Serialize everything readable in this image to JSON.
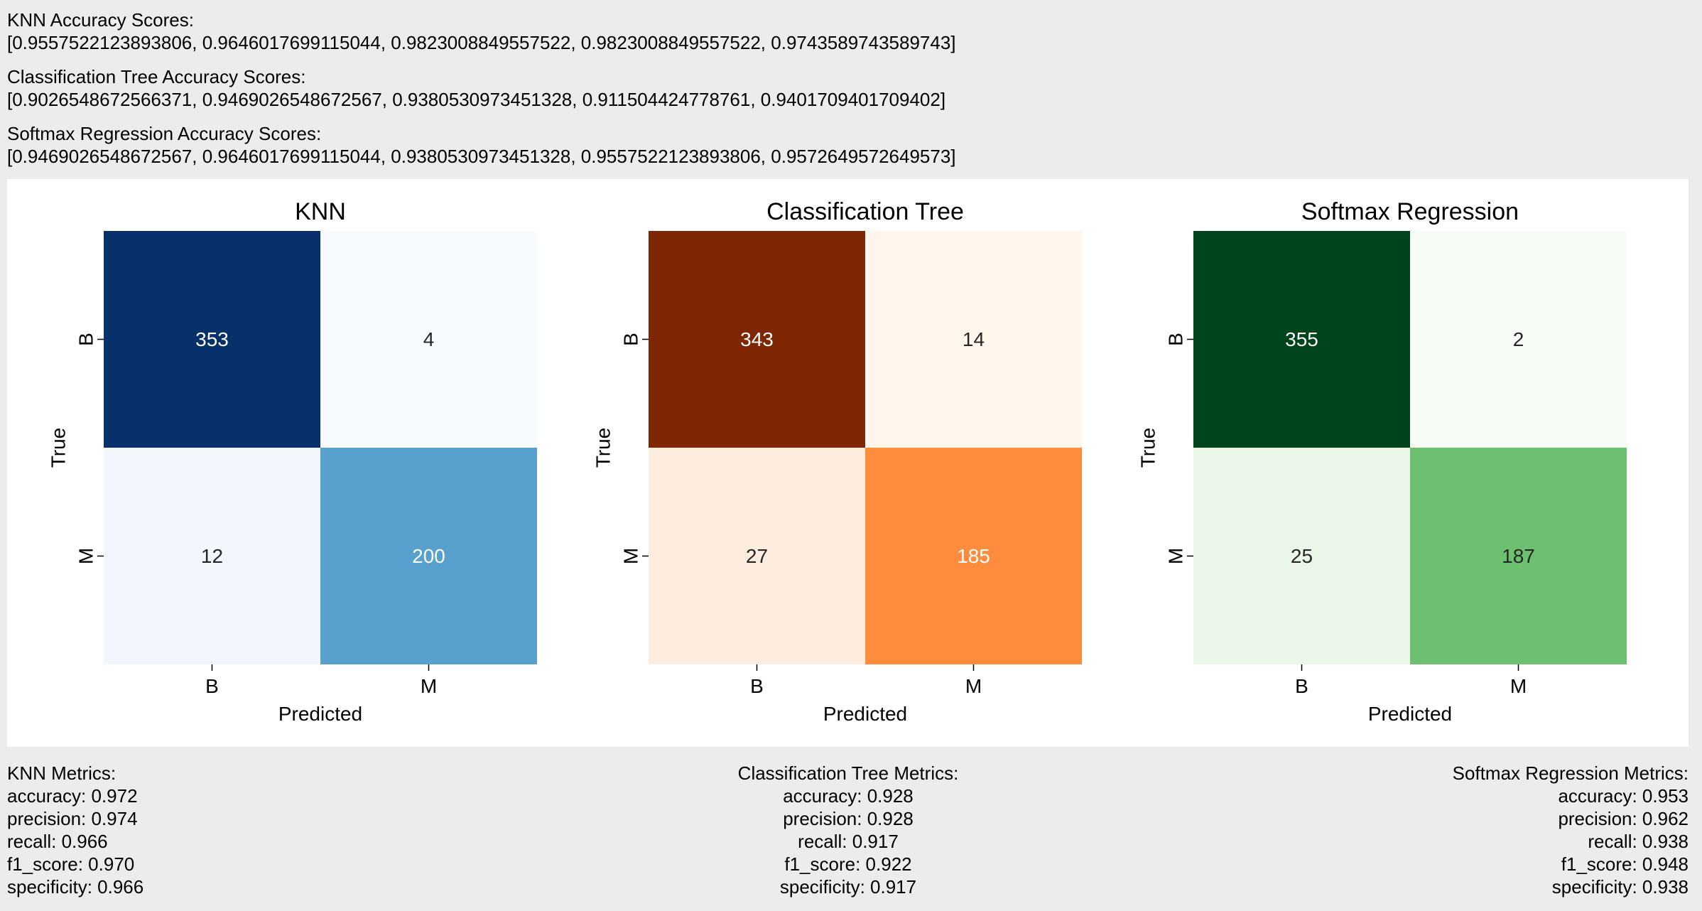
{
  "scores": [
    {
      "heading": "KNN Accuracy Scores:",
      "values": "[0.9557522123893806, 0.9646017699115044, 0.9823008849557522, 0.9823008849557522, 0.9743589743589743]"
    },
    {
      "heading": "Classification Tree Accuracy Scores:",
      "values": "[0.9026548672566371, 0.9469026548672567, 0.9380530973451328, 0.911504424778761, 0.9401709401709402]"
    },
    {
      "heading": "Softmax Regression Accuracy Scores:",
      "values": "[0.9469026548672567, 0.9646017699115044, 0.9380530973451328, 0.9557522123893806, 0.9572649572649573]"
    }
  ],
  "chart_data": [
    {
      "type": "heatmap",
      "title": "KNN",
      "xlabel": "Predicted",
      "ylabel": "True",
      "x_categories": [
        "B",
        "M"
      ],
      "y_categories": [
        "B",
        "M"
      ],
      "matrix": [
        [
          353,
          4
        ],
        [
          12,
          200
        ]
      ],
      "colormap": "Blues",
      "cell_colors": [
        [
          "#08306b",
          "#f7fbff"
        ],
        [
          "#f2f7fd",
          "#58a1cf"
        ]
      ],
      "text_colors": [
        [
          "#ffffff",
          "#262626"
        ],
        [
          "#262626",
          "#ffffff"
        ]
      ],
      "colorbar": false
    },
    {
      "type": "heatmap",
      "title": "Classification Tree",
      "xlabel": "Predicted",
      "ylabel": "True",
      "x_categories": [
        "B",
        "M"
      ],
      "y_categories": [
        "B",
        "M"
      ],
      "matrix": [
        [
          343,
          14
        ],
        [
          27,
          185
        ]
      ],
      "colormap": "Oranges",
      "cell_colors": [
        [
          "#7f2704",
          "#fff5eb"
        ],
        [
          "#feedde",
          "#fd8d3c"
        ]
      ],
      "text_colors": [
        [
          "#ffffff",
          "#262626"
        ],
        [
          "#262626",
          "#ffffff"
        ]
      ],
      "colorbar": false
    },
    {
      "type": "heatmap",
      "title": "Softmax Regression",
      "xlabel": "Predicted",
      "ylabel": "True",
      "x_categories": [
        "B",
        "M"
      ],
      "y_categories": [
        "B",
        "M"
      ],
      "matrix": [
        [
          355,
          2
        ],
        [
          25,
          187
        ]
      ],
      "colormap": "Greens",
      "cell_colors": [
        [
          "#00441b",
          "#f7fcf5"
        ],
        [
          "#eaf6e7",
          "#6cc06f"
        ]
      ],
      "text_colors": [
        [
          "#ffffff",
          "#262626"
        ],
        [
          "#262626",
          "#262626"
        ]
      ],
      "colorbar": false
    }
  ],
  "metrics": [
    {
      "heading": "KNN Metrics:",
      "lines": [
        "accuracy: 0.972",
        "precision: 0.974",
        "recall: 0.966",
        "f1_score: 0.970",
        "specificity: 0.966"
      ]
    },
    {
      "heading": "Classification Tree Metrics:",
      "lines": [
        "accuracy: 0.928",
        "precision: 0.928",
        "recall: 0.917",
        "f1_score: 0.922",
        "specificity: 0.917"
      ]
    },
    {
      "heading": "Softmax Regression Metrics:",
      "lines": [
        "accuracy: 0.953",
        "precision: 0.962",
        "recall: 0.938",
        "f1_score: 0.948",
        "specificity: 0.938"
      ]
    }
  ]
}
